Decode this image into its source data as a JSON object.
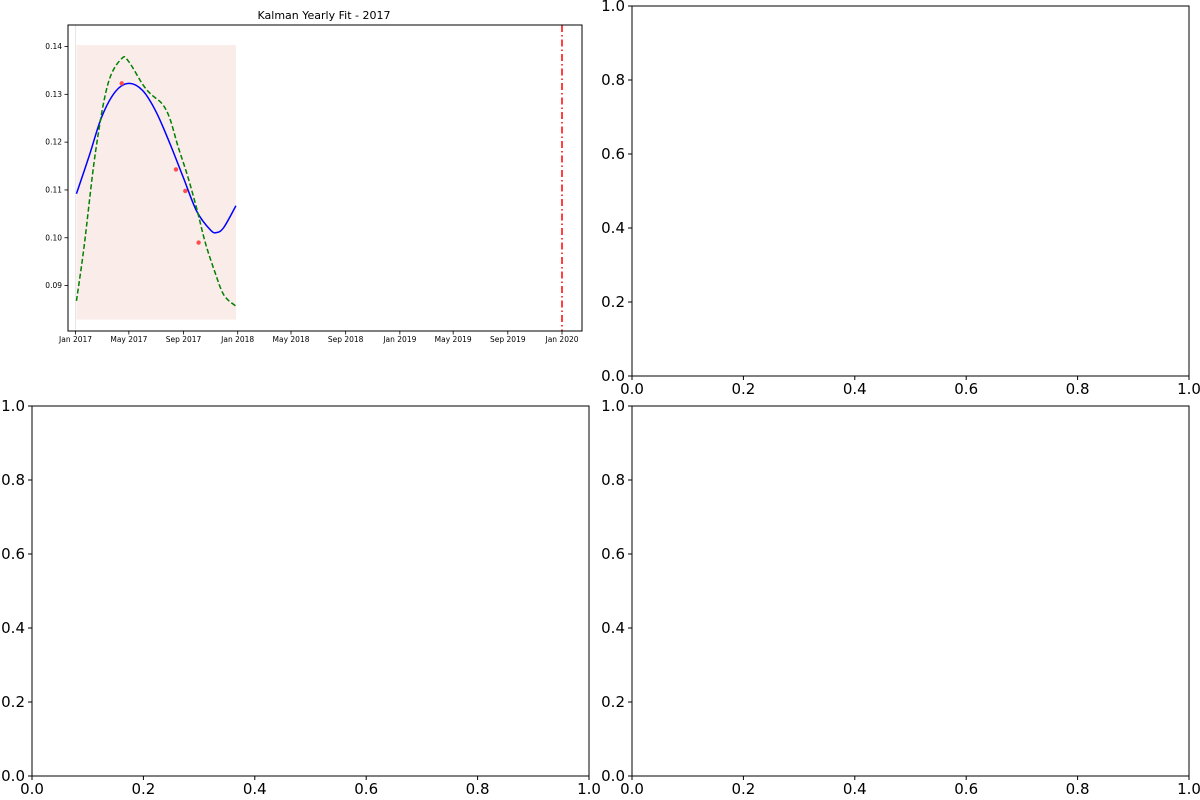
{
  "figure": {
    "panels": [
      {
        "id": "top-left",
        "title": "Kalman Yearly Fit - 2017",
        "x_tick_labels": [
          "Jan 2017",
          "May 2017",
          "Sep 2017",
          "Jan 2018",
          "May 2018",
          "Sep 2018",
          "Jan 2019",
          "May 2019",
          "Sep 2019",
          "Jan 2020"
        ],
        "y_tick_labels": [
          "0.09",
          "0.10",
          "0.11",
          "0.12",
          "0.13",
          "0.14"
        ]
      },
      {
        "id": "top-right",
        "x_tick_labels": [
          "0.0",
          "0.2",
          "0.4",
          "0.6",
          "0.8",
          "1.0"
        ],
        "y_tick_labels": [
          "0.0",
          "0.2",
          "0.4",
          "0.6",
          "0.8",
          "1.0"
        ]
      },
      {
        "id": "bottom-left",
        "x_tick_labels": [
          "0.0",
          "0.2",
          "0.4",
          "0.6",
          "0.8",
          "1.0"
        ],
        "y_tick_labels": [
          "0.0",
          "0.2",
          "0.4",
          "0.6",
          "0.8",
          "1.0"
        ]
      },
      {
        "id": "bottom-right",
        "x_tick_labels": [
          "0.0",
          "0.2",
          "0.4",
          "0.6",
          "0.8",
          "1.0"
        ],
        "y_tick_labels": [
          "0.0",
          "0.2",
          "0.4",
          "0.6",
          "0.8",
          "1.0"
        ]
      }
    ]
  },
  "colors": {
    "fit_line": "#0000ff",
    "dashed_line": "#008000",
    "points": "#ff4d4d",
    "vline": "#ff0000",
    "span": "#f9ece9"
  },
  "chart_data": [
    {
      "type": "line",
      "title": "Kalman Yearly Fit - 2017",
      "x_axis": "date",
      "xlim": [
        "2016-12-15",
        "2020-02-15"
      ],
      "ylim": [
        0.0805,
        0.1445
      ],
      "x_ticks": [
        "2017-01-01",
        "2017-05-01",
        "2017-09-01",
        "2018-01-01",
        "2018-05-01",
        "2018-09-01",
        "2019-01-01",
        "2019-05-01",
        "2019-09-01",
        "2020-01-01"
      ],
      "y_ticks": [
        0.09,
        0.1,
        0.11,
        0.12,
        0.13,
        0.14
      ],
      "shaded_region": {
        "x": [
          "2017-01-03",
          "2017-12-28"
        ],
        "y": [
          0.0829,
          0.1403
        ]
      },
      "vertical_lines": [
        {
          "x": "2017-01-01",
          "style": "solid",
          "color": "light"
        },
        {
          "x": "2020-01-01",
          "style": "dashdot",
          "color": "red"
        }
      ],
      "series": [
        {
          "style": "solid",
          "color": "blue",
          "x": [
            "2017-01-03",
            "2017-02-01",
            "2017-03-01",
            "2017-04-01",
            "2017-05-01",
            "2017-06-01",
            "2017-07-01",
            "2017-08-01",
            "2017-09-01",
            "2017-10-01",
            "2017-11-01",
            "2017-11-15",
            "2017-12-01",
            "2017-12-28"
          ],
          "y": [
            0.1092,
            0.1172,
            0.1253,
            0.1306,
            0.1323,
            0.1308,
            0.1264,
            0.1198,
            0.1125,
            0.1055,
            0.1016,
            0.1011,
            0.1022,
            0.1067
          ]
        },
        {
          "style": "dashed",
          "color": "green",
          "x": [
            "2017-01-03",
            "2017-01-20",
            "2017-02-15",
            "2017-03-15",
            "2017-04-15",
            "2017-05-01",
            "2017-06-01",
            "2017-06-20",
            "2017-07-15",
            "2017-08-01",
            "2017-08-20",
            "2017-09-10",
            "2017-10-01",
            "2017-10-20",
            "2017-11-10",
            "2017-12-01",
            "2017-12-28"
          ],
          "y": [
            0.0868,
            0.098,
            0.118,
            0.1322,
            0.1375,
            0.1368,
            0.1321,
            0.13,
            0.128,
            0.125,
            0.119,
            0.113,
            0.106,
            0.099,
            0.093,
            0.088,
            0.0857
          ]
        },
        {
          "type": "scatter",
          "color": "red",
          "x": [
            "2017-04-15",
            "2017-08-15",
            "2017-09-05",
            "2017-10-05"
          ],
          "y": [
            0.1323,
            0.1143,
            0.1098,
            0.099
          ]
        }
      ]
    },
    {
      "type": "empty",
      "xlim": [
        0,
        1
      ],
      "ylim": [
        0,
        1
      ],
      "x_ticks": [
        0.0,
        0.2,
        0.4,
        0.6,
        0.8,
        1.0
      ],
      "y_ticks": [
        0.0,
        0.2,
        0.4,
        0.6,
        0.8,
        1.0
      ]
    },
    {
      "type": "empty",
      "xlim": [
        0,
        1
      ],
      "ylim": [
        0,
        1
      ],
      "x_ticks": [
        0.0,
        0.2,
        0.4,
        0.6,
        0.8,
        1.0
      ],
      "y_ticks": [
        0.0,
        0.2,
        0.4,
        0.6,
        0.8,
        1.0
      ]
    },
    {
      "type": "empty",
      "xlim": [
        0,
        1
      ],
      "ylim": [
        0,
        1
      ],
      "x_ticks": [
        0.0,
        0.2,
        0.4,
        0.6,
        0.8,
        1.0
      ],
      "y_ticks": [
        0.0,
        0.2,
        0.4,
        0.6,
        0.8,
        1.0
      ]
    }
  ]
}
